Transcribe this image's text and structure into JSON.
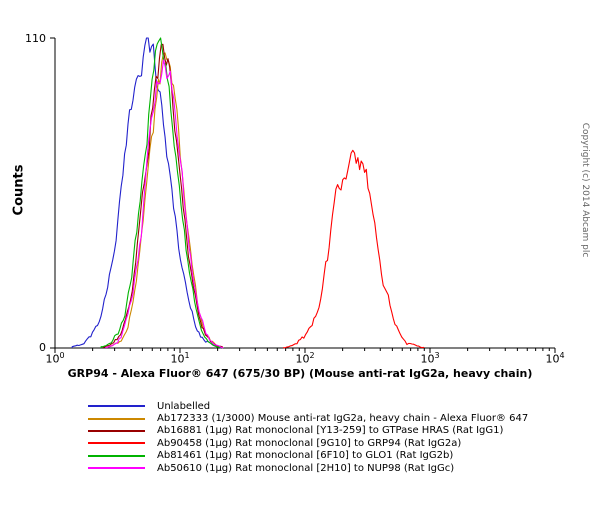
{
  "copyright": "Copyright (c) 2014 Abcam plc",
  "chart_data": {
    "type": "line",
    "subtype": "flow-cytometry-overlay-histogram",
    "title": "",
    "xlabel": "GRP94 - Alexa Fluor® 647 (675/30 BP) (Mouse anti-rat IgG2a, heavy chain)",
    "ylabel": "Counts",
    "x_scale": "log10",
    "x_tick_base": 10,
    "x_tick_exponents": [
      0,
      1,
      2,
      3,
      4
    ],
    "xlim_exponents": [
      0,
      4
    ],
    "ylim": [
      0,
      110
    ],
    "y_tick_labels": [
      "0",
      "110"
    ],
    "grid": false,
    "legend_position": "bottom",
    "series": [
      {
        "name": "Unlabelled",
        "color": "#2222cc",
        "peak_x": 5.4,
        "peak_count": 108,
        "sigma_log10": 0.175,
        "noise": 0.06
      },
      {
        "name": "Ab172333 (1/3000) Mouse anti-rat IgG2a, heavy chain - Alexa Fluor® 647",
        "color": "#cc8800",
        "peak_x": 7.6,
        "peak_count": 101,
        "sigma_log10": 0.135,
        "noise": 0.06
      },
      {
        "name": "Ab16881 (1µg) Rat monoclonal [Y13-259] to GTPase HRAS (Rat IgG1)",
        "color": "#990000",
        "peak_x": 7.3,
        "peak_count": 104,
        "sigma_log10": 0.14,
        "noise": 0.06
      },
      {
        "name": "Ab90458 (1µg) Rat monoclonal [9G10] to GRP94 (Rat IgG2a)",
        "color": "#ff0000",
        "peak_x": 245,
        "peak_count": 72,
        "sigma_log10": 0.165,
        "noise": 0.09
      },
      {
        "name": "Ab81461 (1µg) Rat monoclonal [6F10] to GLO1 (Rat IgG2b)",
        "color": "#00b300",
        "peak_x": 7.0,
        "peak_count": 105,
        "sigma_log10": 0.14,
        "noise": 0.06
      },
      {
        "name": "Ab50610 (1µg) Rat monoclonal [2H10] to NUP98 (Rat IgGc)",
        "color": "#ff00ff",
        "peak_x": 7.5,
        "peak_count": 102,
        "sigma_log10": 0.138,
        "noise": 0.06
      }
    ]
  }
}
